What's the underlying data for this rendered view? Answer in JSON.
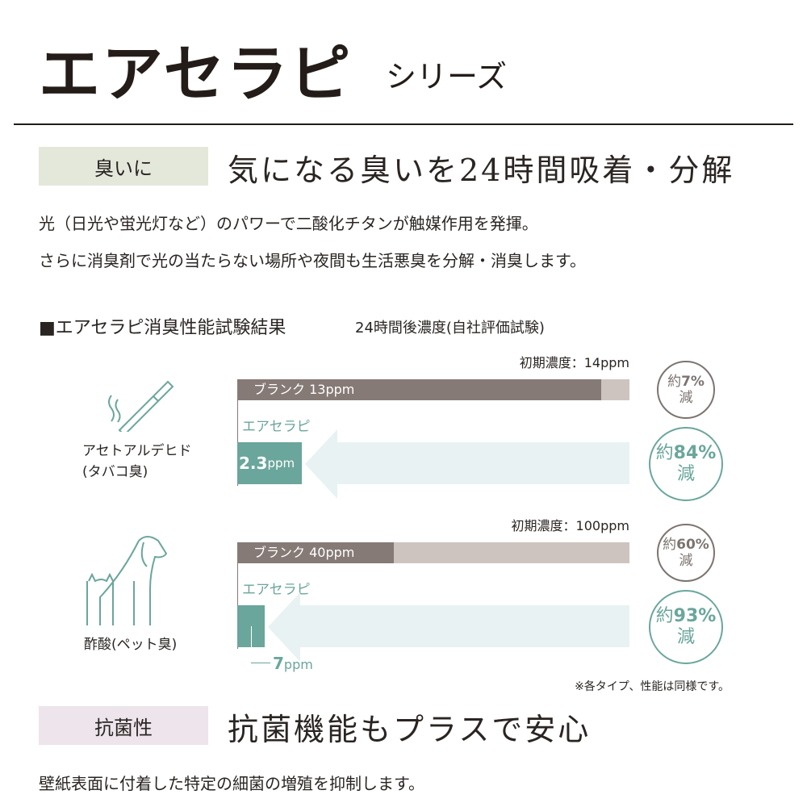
{
  "header": {
    "title": "エアセラピ",
    "subtitle": "シリーズ"
  },
  "odor": {
    "tag": "臭いに",
    "headline": "気になる臭いを24時間吸着・分解",
    "desc": [
      "光（日光や蛍光灯など）のパワーで二酸化チタンが触媒作用を発揮。",
      "さらに消臭剤で光の当たらない場所や夜間も生活悪臭を分解・消臭します。"
    ]
  },
  "test": {
    "title": "■エアセラピ消臭性能試験結果",
    "subtitle": "24時間後濃度(自社評価試験)",
    "note": "※各タイプ、性能は同様です。"
  },
  "chart_data": {
    "type": "bar",
    "groups": [
      {
        "name": "アセトアルデヒド",
        "sub": "(タバコ臭)",
        "icon": "cigarette-icon",
        "initial_label": "初期濃度：14ppm",
        "initial": 14,
        "blank": {
          "label": "ブランク 13ppm",
          "value": 13,
          "reduction_prefix": "約",
          "reduction": "7%",
          "reduction_suffix": "減"
        },
        "product": {
          "label": "エアセラピ",
          "value": 2.3,
          "value_label": "2.3",
          "unit": "ppm",
          "reduction_prefix": "約",
          "reduction": "84%",
          "reduction_suffix": "減"
        }
      },
      {
        "name": "酢酸",
        "sub": "(ペット臭)",
        "icon": "dog-cat-icon",
        "initial_label": "初期濃度：100ppm",
        "initial": 100,
        "blank": {
          "label": "ブランク 40ppm",
          "value": 40,
          "reduction_prefix": "約",
          "reduction": "60%",
          "reduction_suffix": "減"
        },
        "product": {
          "label": "エアセラピ",
          "value": 7,
          "value_label": "7",
          "unit": "ppm",
          "reduction_prefix": "約",
          "reduction": "93%",
          "reduction_suffix": "減"
        }
      }
    ]
  },
  "antibacterial": {
    "tag": "抗菌性",
    "headline": "抗菌機能もプラスで安心",
    "desc": "壁紙表面に付着した特定の細菌の増殖を抑制します。"
  },
  "colors": {
    "blank": "#857a75",
    "initial": "#cdc4c0",
    "product": "#6aa69b",
    "arrow": "#e8f2f2",
    "odor_tag": "#e4e8db",
    "anti_tag": "#ede4ec"
  }
}
